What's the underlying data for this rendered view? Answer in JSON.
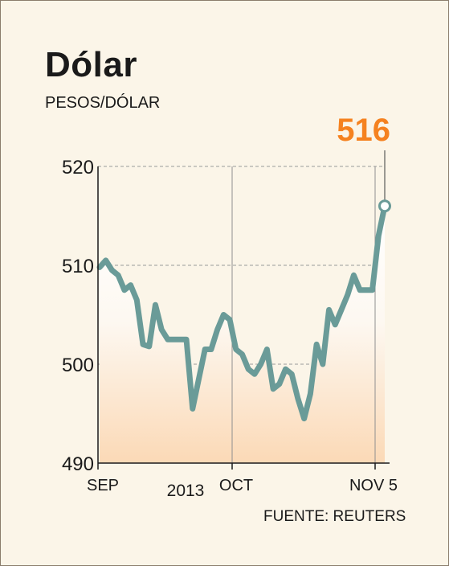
{
  "title": "Dólar",
  "unit": "PESOS/DÓLAR",
  "source": "FUENTE: REUTERS",
  "colors": {
    "line": "#6a9b98",
    "highlight": "#f58220",
    "grid": "#9a9a9a",
    "background": "#fbf5e8"
  },
  "chart_data": {
    "type": "line",
    "title": "Dólar",
    "ylabel": "PESOS/DÓLAR",
    "ylim": [
      490,
      520
    ],
    "yticks": [
      "490",
      "500",
      "510",
      "520"
    ],
    "xticks": [
      "SEP",
      "OCT",
      "NOV 5"
    ],
    "year_label": "2013",
    "last_value_label": "516",
    "series": [
      {
        "values": [
          509.8,
          510.5,
          509.5,
          509.0,
          507.5,
          508.0,
          506.5,
          502.0,
          501.8,
          506.0,
          503.5,
          502.5,
          502.5,
          502.5,
          502.5,
          495.5,
          498.5,
          501.5,
          501.5,
          503.5,
          505.0,
          504.5,
          501.5,
          501.0,
          499.5,
          499.0,
          500.0,
          501.5,
          497.5,
          498.0,
          499.5,
          499.0,
          496.5,
          494.5,
          497.0,
          502.0,
          500.0,
          505.5,
          504.0,
          505.5,
          507.0,
          509.0,
          507.5,
          507.5,
          507.5,
          513.0,
          516.0
        ]
      }
    ]
  }
}
